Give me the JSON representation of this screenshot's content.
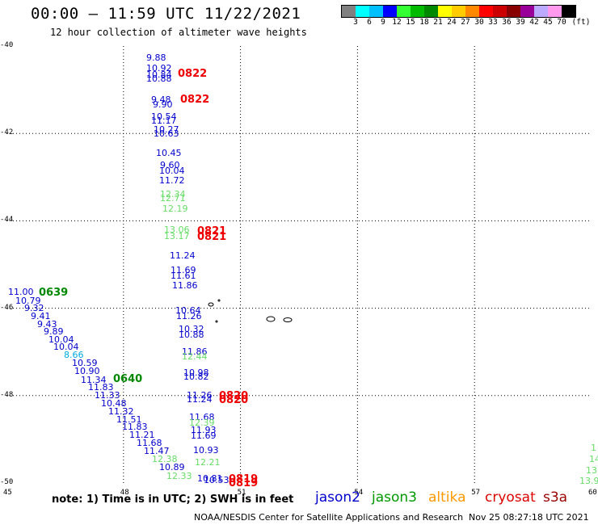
{
  "header": {
    "title": "00:00 – 11:59 UTC 11/22/2021",
    "subtitle": "12 hour collection of altimeter wave heights"
  },
  "legend": {
    "colors": [
      "#808080",
      "#00ffff",
      "#00bfff",
      "#0000ff",
      "#33ff33",
      "#00bb00",
      "#008800",
      "#ffff00",
      "#ffcc00",
      "#ff8800",
      "#ff0000",
      "#cc0000",
      "#880000",
      "#990099",
      "#bbaaff",
      "#ff99ee",
      "#000000"
    ],
    "labels": [
      "3",
      "6",
      "9",
      "12",
      "15",
      "18",
      "21",
      "24",
      "27",
      "30",
      "33",
      "36",
      "39",
      "42",
      "45",
      "70"
    ],
    "unit": "(ft)"
  },
  "axes": {
    "lat_labels": [
      "-40",
      "-42",
      "-44",
      "-46",
      "-48",
      "-50"
    ],
    "lon_labels": [
      "45",
      "48",
      "51",
      "54",
      "57",
      "60"
    ]
  },
  "observations": {
    "column_a": [
      {
        "v": "9.88",
        "c": "#0000cc"
      },
      {
        "v": "10.92",
        "c": "#0000cc"
      },
      {
        "v": "10.84",
        "c": "#0000cc"
      },
      {
        "v": "10.88",
        "c": "#0000cc"
      },
      {
        "v": "9.48",
        "c": "#0000cc"
      },
      {
        "v": "9.90",
        "c": "#0000cc"
      },
      {
        "v": "10.54",
        "c": "#0000cc"
      },
      {
        "v": "11.17",
        "c": "#0000cc"
      },
      {
        "v": "10.27",
        "c": "#0000cc"
      },
      {
        "v": "10.63",
        "c": "#0000cc"
      },
      {
        "v": "10.45",
        "c": "#0000cc"
      },
      {
        "v": "9.60",
        "c": "#0000cc"
      },
      {
        "v": "10.04",
        "c": "#0000cc"
      },
      {
        "v": "11.72",
        "c": "#0000cc"
      },
      {
        "v": "12.34",
        "c": "#66dd66"
      },
      {
        "v": "12.71",
        "c": "#66dd66"
      },
      {
        "v": "12.19",
        "c": "#66dd66"
      },
      {
        "v": "13.06",
        "c": "#66dd66"
      },
      {
        "v": "13.17",
        "c": "#66dd66"
      },
      {
        "v": "11.24",
        "c": "#0000cc"
      },
      {
        "v": "11.69",
        "c": "#0000cc"
      },
      {
        "v": "11.61",
        "c": "#0000cc"
      },
      {
        "v": "11.86",
        "c": "#0000cc"
      }
    ],
    "column_b": [
      {
        "v": "10.64",
        "c": "#0000cc"
      },
      {
        "v": "11.26",
        "c": "#0000cc"
      },
      {
        "v": "10.32",
        "c": "#0000cc"
      },
      {
        "v": "10.88",
        "c": "#0000cc"
      },
      {
        "v": "11.86",
        "c": "#0000cc"
      },
      {
        "v": "12.44",
        "c": "#66dd66"
      },
      {
        "v": "10.98",
        "c": "#0000cc"
      },
      {
        "v": "10.82",
        "c": "#0000cc"
      },
      {
        "v": "11.26",
        "c": "#0000cc"
      },
      {
        "v": "11.24",
        "c": "#0000cc"
      },
      {
        "v": "11.68",
        "c": "#0000cc"
      },
      {
        "v": "12.39",
        "c": "#66dd66"
      },
      {
        "v": "11.93",
        "c": "#0000cc"
      },
      {
        "v": "11.69",
        "c": "#0000cc"
      },
      {
        "v": "10.93",
        "c": "#0000cc"
      },
      {
        "v": "12.21",
        "c": "#66dd66"
      },
      {
        "v": "10.81",
        "c": "#0000cc"
      },
      {
        "v": "10.53",
        "c": "#0000cc"
      }
    ],
    "diagonal_track": [
      {
        "v": "11.00",
        "c": "#0000cc"
      },
      {
        "v": "10.79",
        "c": "#0000cc"
      },
      {
        "v": "9.32",
        "c": "#0000cc"
      },
      {
        "v": "9.41",
        "c": "#0000cc"
      },
      {
        "v": "9.43",
        "c": "#0000cc"
      },
      {
        "v": "9.89",
        "c": "#0000cc"
      },
      {
        "v": "10.04",
        "c": "#0000cc"
      },
      {
        "v": "10.04",
        "c": "#0000cc"
      },
      {
        "v": "8.66",
        "c": "#00aadd"
      },
      {
        "v": "10.59",
        "c": "#0000cc"
      },
      {
        "v": "10.90",
        "c": "#0000cc"
      },
      {
        "v": "11.34",
        "c": "#0000cc"
      },
      {
        "v": "11.83",
        "c": "#0000cc"
      },
      {
        "v": "11.33",
        "c": "#0000cc"
      },
      {
        "v": "10.48",
        "c": "#0000cc"
      },
      {
        "v": "11.32",
        "c": "#0000cc"
      },
      {
        "v": "11.51",
        "c": "#0000cc"
      },
      {
        "v": "11.83",
        "c": "#0000cc"
      },
      {
        "v": "11.21",
        "c": "#0000cc"
      },
      {
        "v": "11.68",
        "c": "#0000cc"
      },
      {
        "v": "11.47",
        "c": "#0000cc"
      },
      {
        "v": "12.38",
        "c": "#66dd66"
      },
      {
        "v": "10.89",
        "c": "#0000cc"
      },
      {
        "v": "12.33",
        "c": "#66dd66"
      }
    ],
    "right_edge": [
      {
        "v": "1",
        "c": "#66dd66"
      },
      {
        "v": "14",
        "c": "#66dd66"
      },
      {
        "v": "13.",
        "c": "#66dd66"
      },
      {
        "v": "13.9",
        "c": "#66dd66"
      }
    ]
  },
  "time_tags": [
    {
      "t": "0822",
      "c": "#ee0000"
    },
    {
      "t": "0822",
      "c": "#ee0000"
    },
    {
      "t": "0821",
      "c": "#ee0000"
    },
    {
      "t": "0821",
      "c": "#ee0000"
    },
    {
      "t": "0639",
      "c": "#008800"
    },
    {
      "t": "0640",
      "c": "#008800"
    },
    {
      "t": "0820",
      "c": "#ee0000"
    },
    {
      "t": "0820",
      "c": "#ee0000"
    },
    {
      "t": "0819",
      "c": "#ee0000"
    },
    {
      "t": "0819",
      "c": "#ee0000"
    }
  ],
  "note": "note: 1) Time is in UTC; 2) SWH is in feet",
  "missions": [
    {
      "name": "jason2",
      "color": "#0000cc"
    },
    {
      "name": "jason3",
      "color": "#009900"
    },
    {
      "name": "altika",
      "color": "#ff9900"
    },
    {
      "name": "cryosat",
      "color": "#dd0000"
    },
    {
      "name": "s3a",
      "color": "#990000"
    }
  ],
  "footer": {
    "credit": "NOAA/NESDIS Center for Satellite Applications and Research",
    "timestamp": "Nov 25 08:27:18 UTC 2021"
  }
}
